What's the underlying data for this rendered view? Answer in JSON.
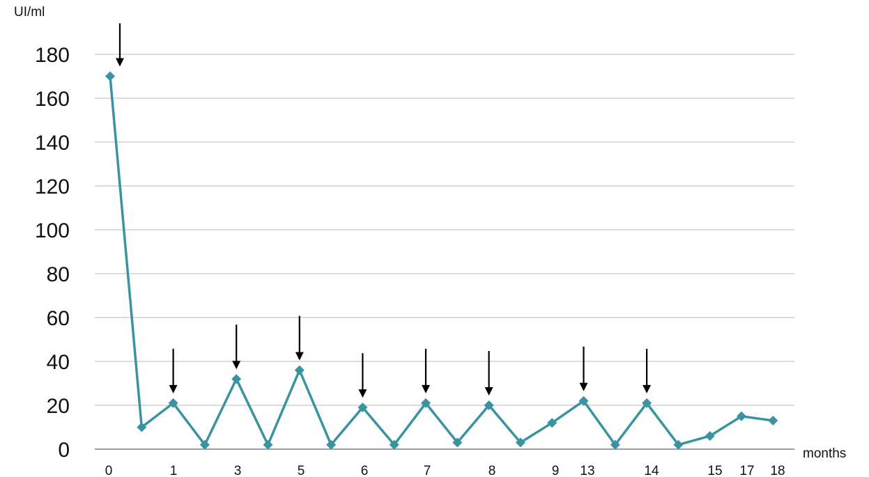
{
  "chart_data": {
    "type": "line",
    "ylabel": "UI/ml",
    "xlabel": "months",
    "ylim": [
      0,
      180
    ],
    "ytick_step": 20,
    "yticks": [
      "0",
      "20",
      "40",
      "60",
      "80",
      "100",
      "120",
      "140",
      "160",
      "180"
    ],
    "grid": true,
    "legend": "none",
    "x_tick_labels": [
      "0",
      "1",
      "3",
      "5",
      "6",
      "7",
      "8",
      "9",
      "13",
      "14",
      "15",
      "17",
      "18"
    ],
    "series": [
      {
        "values": [
          170,
          10,
          21,
          2,
          32,
          2,
          36,
          2,
          19,
          2,
          21,
          3,
          20,
          3,
          12,
          22,
          2,
          21,
          2,
          6,
          15,
          13
        ]
      }
    ],
    "arrow_points": [
      0,
      2,
      4,
      6,
      8,
      10,
      12,
      15,
      17
    ],
    "colors": {
      "series": "#3a93a0",
      "grid": "#c8c8c8",
      "axis": "#7f7f7f",
      "arrow": "#000000"
    }
  }
}
